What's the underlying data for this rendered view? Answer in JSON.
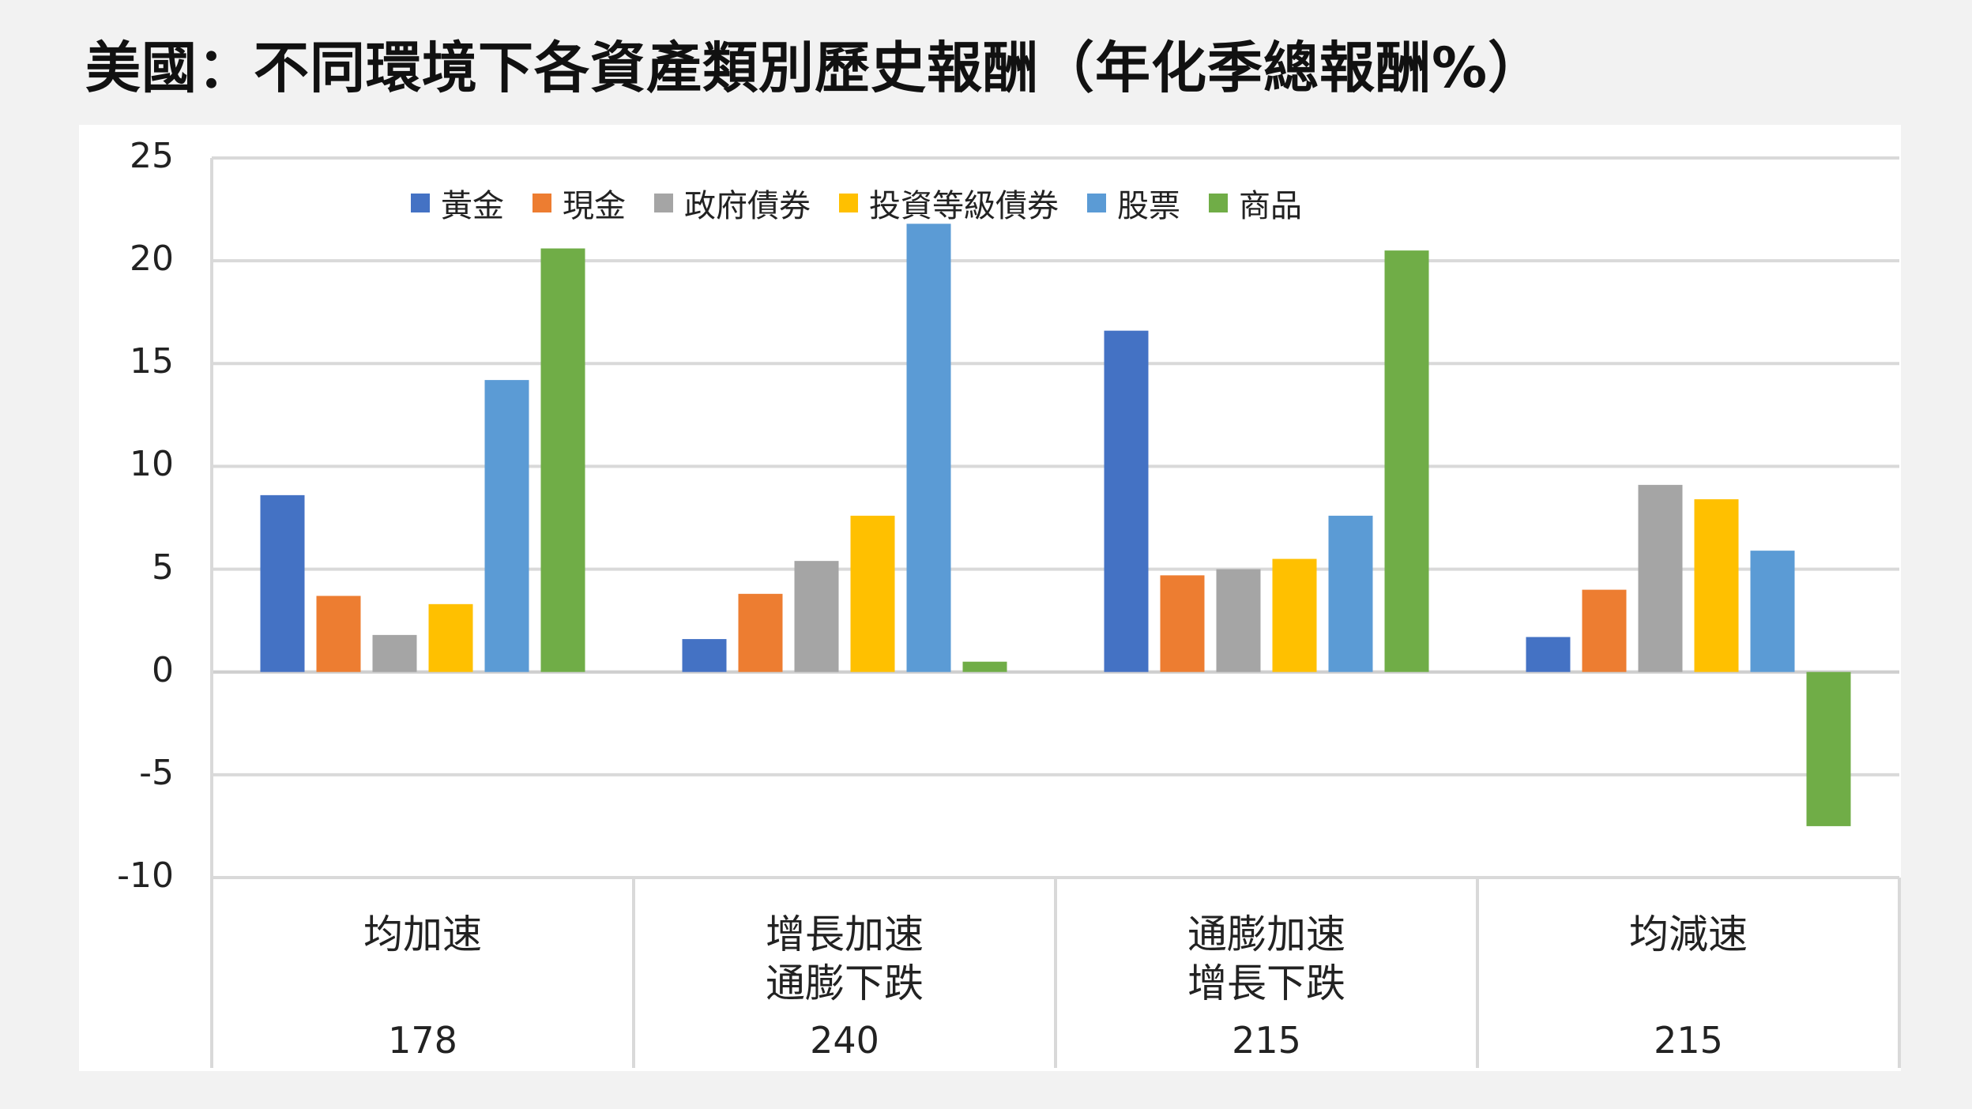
{
  "title": "美國：不同環境下各資產類別歷史報酬（年化季總報酬%）",
  "chart_data": {
    "type": "bar",
    "ylim": [
      -10,
      25
    ],
    "yticks": [
      "25",
      "20",
      "15",
      "10",
      "5",
      "0",
      "-5",
      "-10"
    ],
    "categories": [
      {
        "line1": "均加速",
        "line2": "",
        "count": "178"
      },
      {
        "line1": "增長加速",
        "line2": "通膨下跌",
        "count": "240"
      },
      {
        "line1": "通膨加速",
        "line2": "增長下跌",
        "count": "215"
      },
      {
        "line1": "均減速",
        "line2": "",
        "count": "215"
      }
    ],
    "series": [
      {
        "name": "黃金",
        "color": "#4472c4",
        "values": [
          8.6,
          1.6,
          16.6,
          1.7
        ]
      },
      {
        "name": "現金",
        "color": "#ed7d31",
        "values": [
          3.7,
          3.8,
          4.7,
          4.0
        ]
      },
      {
        "name": "政府債券",
        "color": "#a5a5a5",
        "values": [
          1.8,
          5.4,
          5.0,
          9.1
        ]
      },
      {
        "name": "投資等級債券",
        "color": "#ffc000",
        "values": [
          3.3,
          7.6,
          5.5,
          8.4
        ]
      },
      {
        "name": "股票",
        "color": "#5b9bd5",
        "values": [
          14.2,
          21.8,
          7.6,
          5.9
        ]
      },
      {
        "name": "商品",
        "color": "#70ad47",
        "values": [
          20.6,
          0.5,
          20.5,
          -7.5
        ]
      }
    ],
    "legend_position": "top",
    "grid": true
  }
}
